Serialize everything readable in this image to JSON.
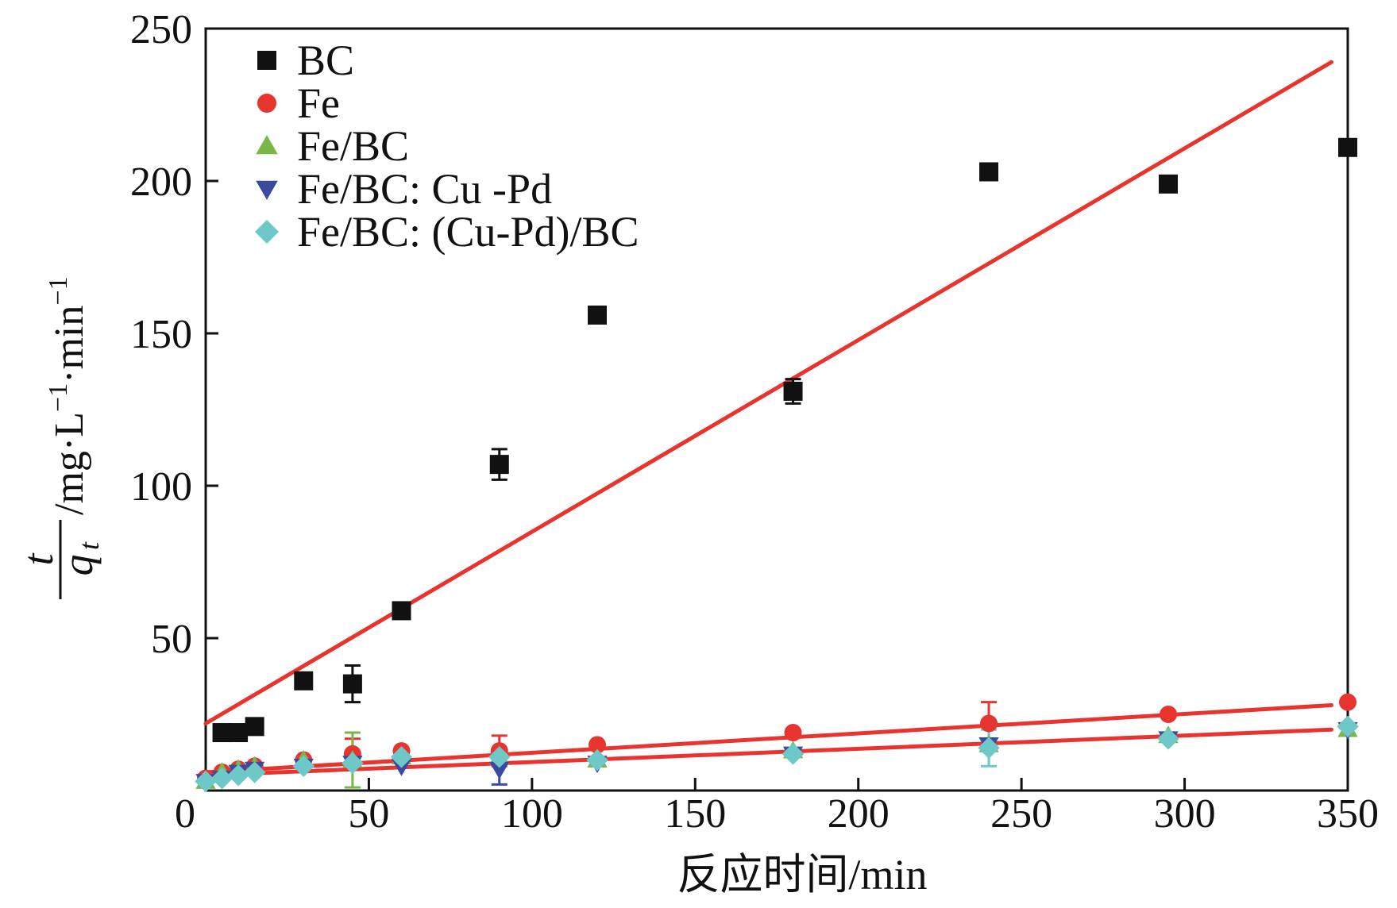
{
  "chart_data": {
    "type": "scatter",
    "title": "",
    "xlabel": "反应时间/min",
    "ylabel": {
      "numerator": "t",
      "denominator": "q",
      "denominator_subscript": "t",
      "units": "/mg·L",
      "units_exp": "−1",
      "units_tail": "·min",
      "units_tail_exp": "−1"
    },
    "xlim": [
      0,
      350
    ],
    "ylim": [
      0,
      250
    ],
    "xticks": [
      0,
      50,
      100,
      150,
      200,
      250,
      300,
      350
    ],
    "yticks": [
      0,
      50,
      100,
      150,
      200,
      250
    ],
    "xtick_labels": [
      "0",
      "50",
      "100",
      "150",
      "200",
      "250",
      "300",
      "350"
    ],
    "ytick_labels": [
      "0",
      "50",
      "100",
      "150",
      "200",
      "250"
    ],
    "legend_position": "top-left",
    "series": [
      {
        "name": "BC",
        "marker": "square",
        "color": "#111111",
        "points": [
          {
            "x": 5,
            "y": 19
          },
          {
            "x": 10,
            "y": 19
          },
          {
            "x": 15,
            "y": 21
          },
          {
            "x": 30,
            "y": 36
          },
          {
            "x": 45,
            "y": 35,
            "err": 6
          },
          {
            "x": 60,
            "y": 59
          },
          {
            "x": 90,
            "y": 107,
            "err": 5
          },
          {
            "x": 120,
            "y": 156
          },
          {
            "x": 180,
            "y": 131,
            "err": 4
          },
          {
            "x": 240,
            "y": 203
          },
          {
            "x": 295,
            "y": 199
          },
          {
            "x": 350,
            "y": 211
          }
        ]
      },
      {
        "name": "Fe",
        "marker": "circle",
        "color": "#e8342f",
        "points": [
          {
            "x": 0,
            "y": 4
          },
          {
            "x": 5,
            "y": 6
          },
          {
            "x": 10,
            "y": 7
          },
          {
            "x": 15,
            "y": 8
          },
          {
            "x": 30,
            "y": 10
          },
          {
            "x": 45,
            "y": 12,
            "err": 5
          },
          {
            "x": 60,
            "y": 13
          },
          {
            "x": 90,
            "y": 13,
            "err": 5
          },
          {
            "x": 120,
            "y": 15
          },
          {
            "x": 180,
            "y": 19
          },
          {
            "x": 240,
            "y": 22,
            "err": 7
          },
          {
            "x": 295,
            "y": 25
          },
          {
            "x": 350,
            "y": 29
          }
        ]
      },
      {
        "name": "Fe/BC",
        "marker": "triangle-up",
        "color": "#7ab648",
        "points": [
          {
            "x": 0,
            "y": 3
          },
          {
            "x": 5,
            "y": 6
          },
          {
            "x": 10,
            "y": 7
          },
          {
            "x": 15,
            "y": 8
          },
          {
            "x": 30,
            "y": 10
          },
          {
            "x": 45,
            "y": 10,
            "err": 9
          },
          {
            "x": 60,
            "y": 11
          },
          {
            "x": 90,
            "y": 11
          },
          {
            "x": 120,
            "y": 10
          },
          {
            "x": 180,
            "y": 13
          },
          {
            "x": 240,
            "y": 15
          },
          {
            "x": 295,
            "y": 18
          },
          {
            "x": 350,
            "y": 20
          }
        ]
      },
      {
        "name": "Fe/BC: Cu -Pd",
        "marker": "triangle-down",
        "color": "#3c4a9e",
        "points": [
          {
            "x": 0,
            "y": 3
          },
          {
            "x": 5,
            "y": 4
          },
          {
            "x": 10,
            "y": 6
          },
          {
            "x": 15,
            "y": 7
          },
          {
            "x": 30,
            "y": 8
          },
          {
            "x": 45,
            "y": 9
          },
          {
            "x": 60,
            "y": 8
          },
          {
            "x": 90,
            "y": 7,
            "err": 5
          },
          {
            "x": 120,
            "y": 9
          },
          {
            "x": 180,
            "y": 12
          },
          {
            "x": 240,
            "y": 15
          },
          {
            "x": 295,
            "y": 17
          },
          {
            "x": 350,
            "y": 20
          }
        ]
      },
      {
        "name": "Fe/BC: (Cu-Pd)/BC",
        "marker": "diamond",
        "color": "#6ec8c8",
        "points": [
          {
            "x": 0,
            "y": 3
          },
          {
            "x": 5,
            "y": 4
          },
          {
            "x": 10,
            "y": 5
          },
          {
            "x": 15,
            "y": 6
          },
          {
            "x": 30,
            "y": 8
          },
          {
            "x": 45,
            "y": 9
          },
          {
            "x": 60,
            "y": 11
          },
          {
            "x": 90,
            "y": 11
          },
          {
            "x": 120,
            "y": 10
          },
          {
            "x": 180,
            "y": 12
          },
          {
            "x": 240,
            "y": 14,
            "err": 6
          },
          {
            "x": 295,
            "y": 17
          },
          {
            "x": 350,
            "y": 21
          }
        ]
      }
    ],
    "fit_lines": [
      {
        "name": "BC fit",
        "color": "#e8342f",
        "x": [
          0,
          345
        ],
        "y": [
          22,
          239
        ]
      },
      {
        "name": "Fe fit",
        "color": "#e8342f",
        "x": [
          0,
          345
        ],
        "y": [
          6,
          28
        ]
      },
      {
        "name": "Fe/BC group fit",
        "color": "#e8342f",
        "x": [
          0,
          345
        ],
        "y": [
          5,
          20
        ]
      }
    ]
  }
}
